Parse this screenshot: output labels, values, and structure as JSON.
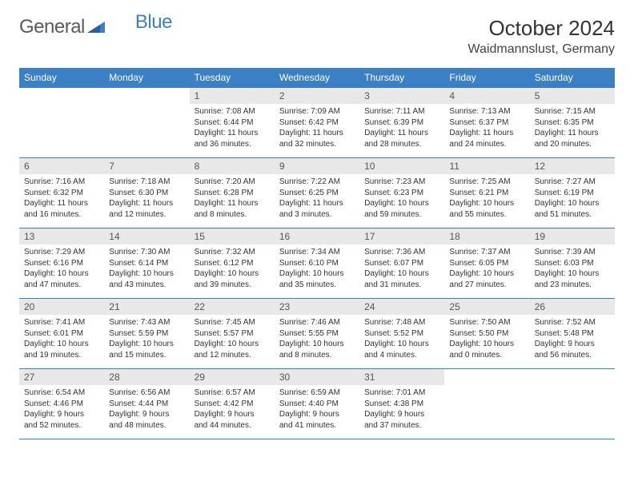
{
  "brand": {
    "part1": "General",
    "part2": "Blue"
  },
  "title": "October 2024",
  "location": "Waidmannslust, Germany",
  "colors": {
    "header_bg": "#3b7fc4",
    "header_text": "#ffffff",
    "daynum_bg": "#e8e8e8",
    "border": "#3b7fc4",
    "text": "#333333",
    "background": "#ffffff"
  },
  "dayNames": [
    "Sunday",
    "Monday",
    "Tuesday",
    "Wednesday",
    "Thursday",
    "Friday",
    "Saturday"
  ],
  "weeks": [
    [
      null,
      null,
      {
        "n": "1",
        "sr": "7:08 AM",
        "ss": "6:44 PM",
        "dl": "11 hours and 36 minutes."
      },
      {
        "n": "2",
        "sr": "7:09 AM",
        "ss": "6:42 PM",
        "dl": "11 hours and 32 minutes."
      },
      {
        "n": "3",
        "sr": "7:11 AM",
        "ss": "6:39 PM",
        "dl": "11 hours and 28 minutes."
      },
      {
        "n": "4",
        "sr": "7:13 AM",
        "ss": "6:37 PM",
        "dl": "11 hours and 24 minutes."
      },
      {
        "n": "5",
        "sr": "7:15 AM",
        "ss": "6:35 PM",
        "dl": "11 hours and 20 minutes."
      }
    ],
    [
      {
        "n": "6",
        "sr": "7:16 AM",
        "ss": "6:32 PM",
        "dl": "11 hours and 16 minutes."
      },
      {
        "n": "7",
        "sr": "7:18 AM",
        "ss": "6:30 PM",
        "dl": "11 hours and 12 minutes."
      },
      {
        "n": "8",
        "sr": "7:20 AM",
        "ss": "6:28 PM",
        "dl": "11 hours and 8 minutes."
      },
      {
        "n": "9",
        "sr": "7:22 AM",
        "ss": "6:25 PM",
        "dl": "11 hours and 3 minutes."
      },
      {
        "n": "10",
        "sr": "7:23 AM",
        "ss": "6:23 PM",
        "dl": "10 hours and 59 minutes."
      },
      {
        "n": "11",
        "sr": "7:25 AM",
        "ss": "6:21 PM",
        "dl": "10 hours and 55 minutes."
      },
      {
        "n": "12",
        "sr": "7:27 AM",
        "ss": "6:19 PM",
        "dl": "10 hours and 51 minutes."
      }
    ],
    [
      {
        "n": "13",
        "sr": "7:29 AM",
        "ss": "6:16 PM",
        "dl": "10 hours and 47 minutes."
      },
      {
        "n": "14",
        "sr": "7:30 AM",
        "ss": "6:14 PM",
        "dl": "10 hours and 43 minutes."
      },
      {
        "n": "15",
        "sr": "7:32 AM",
        "ss": "6:12 PM",
        "dl": "10 hours and 39 minutes."
      },
      {
        "n": "16",
        "sr": "7:34 AM",
        "ss": "6:10 PM",
        "dl": "10 hours and 35 minutes."
      },
      {
        "n": "17",
        "sr": "7:36 AM",
        "ss": "6:07 PM",
        "dl": "10 hours and 31 minutes."
      },
      {
        "n": "18",
        "sr": "7:37 AM",
        "ss": "6:05 PM",
        "dl": "10 hours and 27 minutes."
      },
      {
        "n": "19",
        "sr": "7:39 AM",
        "ss": "6:03 PM",
        "dl": "10 hours and 23 minutes."
      }
    ],
    [
      {
        "n": "20",
        "sr": "7:41 AM",
        "ss": "6:01 PM",
        "dl": "10 hours and 19 minutes."
      },
      {
        "n": "21",
        "sr": "7:43 AM",
        "ss": "5:59 PM",
        "dl": "10 hours and 15 minutes."
      },
      {
        "n": "22",
        "sr": "7:45 AM",
        "ss": "5:57 PM",
        "dl": "10 hours and 12 minutes."
      },
      {
        "n": "23",
        "sr": "7:46 AM",
        "ss": "5:55 PM",
        "dl": "10 hours and 8 minutes."
      },
      {
        "n": "24",
        "sr": "7:48 AM",
        "ss": "5:52 PM",
        "dl": "10 hours and 4 minutes."
      },
      {
        "n": "25",
        "sr": "7:50 AM",
        "ss": "5:50 PM",
        "dl": "10 hours and 0 minutes."
      },
      {
        "n": "26",
        "sr": "7:52 AM",
        "ss": "5:48 PM",
        "dl": "9 hours and 56 minutes."
      }
    ],
    [
      {
        "n": "27",
        "sr": "6:54 AM",
        "ss": "4:46 PM",
        "dl": "9 hours and 52 minutes."
      },
      {
        "n": "28",
        "sr": "6:56 AM",
        "ss": "4:44 PM",
        "dl": "9 hours and 48 minutes."
      },
      {
        "n": "29",
        "sr": "6:57 AM",
        "ss": "4:42 PM",
        "dl": "9 hours and 44 minutes."
      },
      {
        "n": "30",
        "sr": "6:59 AM",
        "ss": "4:40 PM",
        "dl": "9 hours and 41 minutes."
      },
      {
        "n": "31",
        "sr": "7:01 AM",
        "ss": "4:38 PM",
        "dl": "9 hours and 37 minutes."
      },
      null,
      null
    ]
  ],
  "labels": {
    "sunrise": "Sunrise:",
    "sunset": "Sunset:",
    "daylight": "Daylight:"
  }
}
